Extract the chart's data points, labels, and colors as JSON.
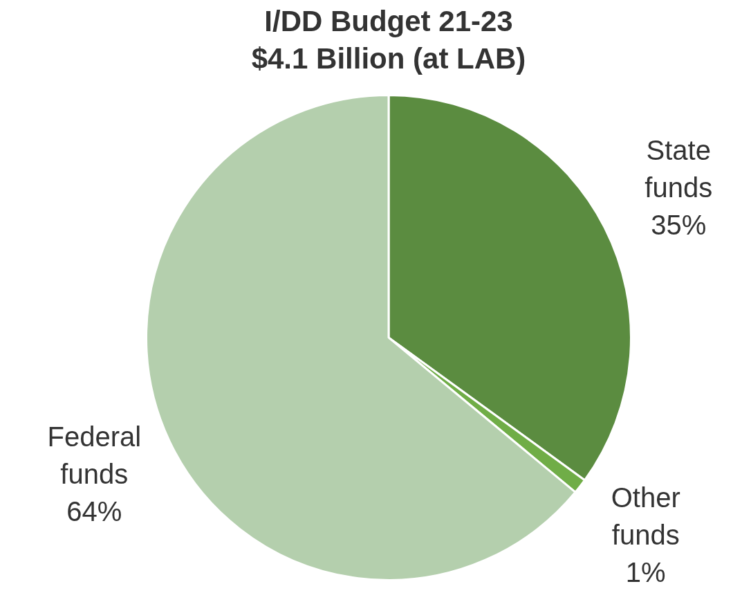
{
  "chart_data": {
    "type": "pie",
    "title": "I/DD Budget 21-23",
    "subtitle": "$4.1 Billion (at LAB)",
    "categories": [
      "State funds",
      "Other funds",
      "Federal funds"
    ],
    "values": [
      35,
      1,
      64
    ],
    "colors": [
      "#5b8c40",
      "#70ad47",
      "#b4cfad"
    ],
    "value_labels": [
      "35%",
      "1%",
      "64%"
    ],
    "legend": false
  }
}
